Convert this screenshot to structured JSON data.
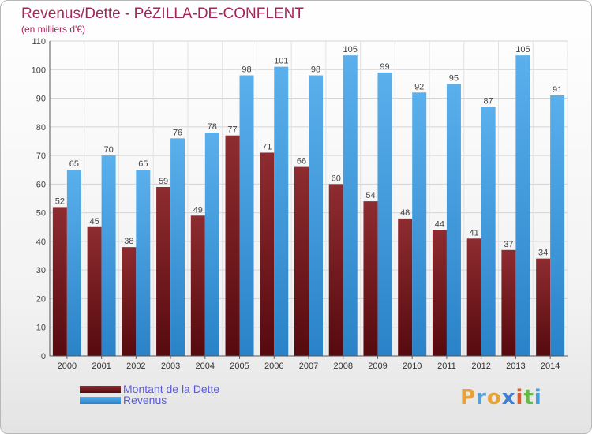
{
  "header": {
    "title": "Revenus/Dette - PéZILLA-DE-CONFLENT",
    "subtitle": "(en milliers d'€)"
  },
  "chart_data": {
    "type": "bar",
    "categories": [
      "2000",
      "2001",
      "2002",
      "2003",
      "2004",
      "2005",
      "2006",
      "2007",
      "2008",
      "2009",
      "2010",
      "2011",
      "2012",
      "2013",
      "2014"
    ],
    "series": [
      {
        "name": "Montant de la Dette",
        "values": [
          52,
          45,
          38,
          59,
          49,
          77,
          71,
          66,
          60,
          54,
          48,
          44,
          41,
          37,
          34
        ],
        "color": "#7b1e22"
      },
      {
        "name": "Revenus",
        "values": [
          65,
          70,
          65,
          76,
          78,
          98,
          101,
          98,
          105,
          99,
          92,
          95,
          87,
          105,
          91
        ],
        "color": "#3d9ee0"
      }
    ],
    "title": "Revenus/Dette - PéZILLA-DE-CONFLENT",
    "ylabel": "(en milliers d'€)",
    "ylim": [
      0,
      110
    ],
    "yticks": [
      0,
      10,
      20,
      30,
      40,
      50,
      60,
      70,
      80,
      90,
      100,
      110
    ],
    "grid": true,
    "legend": "bottom-left"
  },
  "legend": {
    "items": [
      {
        "label": "Montant de la Dette",
        "color": "#7b1e22"
      },
      {
        "label": "Revenus",
        "color": "#3d9ee0"
      }
    ]
  },
  "logo": {
    "letters": [
      {
        "ch": "P",
        "color": "#e8a23a"
      },
      {
        "ch": "r",
        "color": "#5aa0d8"
      },
      {
        "ch": "o",
        "color": "#e8a23a"
      },
      {
        "ch": "x",
        "color": "#3d7fd0"
      },
      {
        "ch": "i",
        "color": "#e05a2a"
      },
      {
        "ch": "t",
        "color": "#66b84a"
      },
      {
        "ch": "i",
        "color": "#3d9ee0"
      }
    ]
  }
}
